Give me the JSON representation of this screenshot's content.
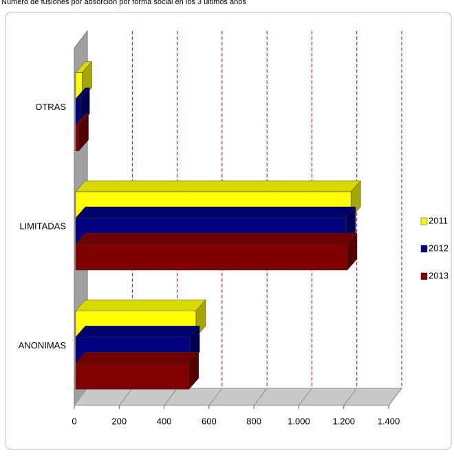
{
  "chart_data": {
    "type": "bar3d_horizontal",
    "title": "Número de fusiones por absorción por forma social en los 3 últimos años",
    "categories": [
      "OTRAS",
      "LIMITADAS",
      "ANONIMAS"
    ],
    "series": [
      {
        "name": "2011",
        "color": "#ffff00",
        "values": [
          35,
          1232,
          542
        ]
      },
      {
        "name": "2012",
        "color": "#000080",
        "values": [
          25,
          1210,
          515
        ]
      },
      {
        "name": "2013",
        "color": "#800000",
        "values": [
          20,
          1216,
          511
        ]
      }
    ],
    "xlim": [
      0,
      1400
    ],
    "xticks": [
      0,
      200,
      400,
      600,
      800,
      {
        "value": 1000,
        "label": "1.000"
      },
      {
        "value": 1200,
        "label": "1.200"
      },
      {
        "value": 1400,
        "label": "1.400"
      }
    ],
    "grid": true,
    "legend": "right"
  }
}
